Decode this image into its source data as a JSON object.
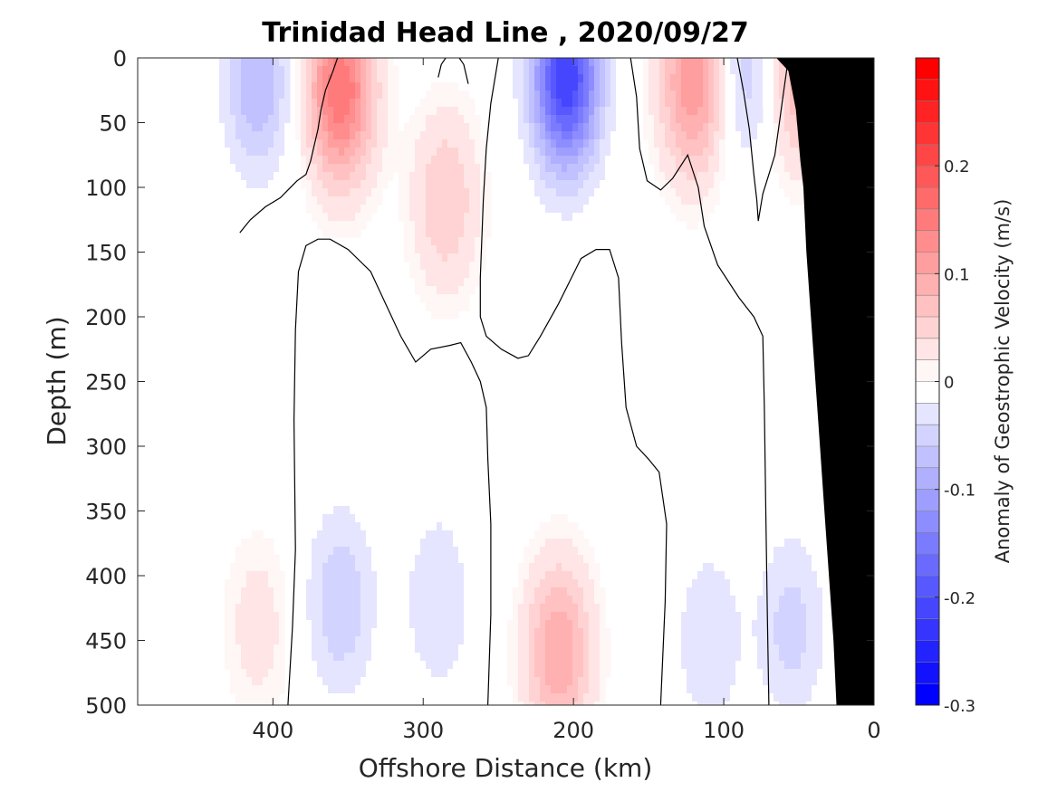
{
  "chart_data": {
    "type": "heatmap",
    "title": "Trinidad Head Line , 2020/09/27",
    "xlabel": "Offshore Distance (km)",
    "ylabel": "Depth (m)",
    "colorbar_label": "Anomaly of Geostrophic Velocity (m/s)",
    "xlim": [
      490,
      0
    ],
    "ylim": [
      500,
      0
    ],
    "x_ticks": [
      "400",
      "300",
      "200",
      "100",
      "0"
    ],
    "x_tick_values": [
      400,
      300,
      200,
      100,
      0
    ],
    "y_ticks": [
      "0",
      "50",
      "100",
      "150",
      "200",
      "250",
      "300",
      "350",
      "400",
      "450",
      "500"
    ],
    "y_tick_values": [
      0,
      50,
      100,
      150,
      200,
      250,
      300,
      350,
      400,
      450,
      500
    ],
    "colorbar_ticks": [
      "0.2",
      "0.1",
      "0",
      "-0.1",
      "-0.2",
      "-0.3"
    ],
    "colorbar_tick_values": [
      0.2,
      0.1,
      0,
      -0.1,
      -0.2,
      -0.3
    ],
    "colorbar_range": [
      -0.3,
      0.3
    ],
    "contour_interval": 0.02,
    "colormap": "blue-white-red",
    "colors": {
      "positive": "#ff0000",
      "negative": "#0000ff",
      "zero": "#ffffff",
      "topography": "#000000"
    },
    "features": [
      {
        "sign": "negative",
        "distance_km": 410,
        "depth_m": 20,
        "peak": -0.08
      },
      {
        "sign": "positive",
        "distance_km": 355,
        "depth_m": 25,
        "peak": 0.16
      },
      {
        "sign": "positive",
        "distance_km": 285,
        "depth_m": 110,
        "peak": 0.06
      },
      {
        "sign": "negative",
        "distance_km": 205,
        "depth_m": 15,
        "peak": -0.22
      },
      {
        "sign": "positive",
        "distance_km": 120,
        "depth_m": 20,
        "peak": 0.12
      },
      {
        "sign": "negative",
        "distance_km": 85,
        "depth_m": 10,
        "peak": -0.06
      },
      {
        "sign": "positive",
        "distance_km": 50,
        "depth_m": 15,
        "peak": 0.08
      },
      {
        "sign": "negative",
        "distance_km": 355,
        "depth_m": 420,
        "peak": -0.06
      },
      {
        "sign": "negative",
        "distance_km": 290,
        "depth_m": 420,
        "peak": -0.04
      },
      {
        "sign": "positive",
        "distance_km": 210,
        "depth_m": 460,
        "peak": 0.1
      },
      {
        "sign": "positive",
        "distance_km": 410,
        "depth_m": 440,
        "peak": 0.03
      },
      {
        "sign": "negative",
        "distance_km": 110,
        "depth_m": 450,
        "peak": -0.04
      },
      {
        "sign": "negative",
        "distance_km": 55,
        "depth_m": 440,
        "peak": -0.05
      }
    ]
  }
}
